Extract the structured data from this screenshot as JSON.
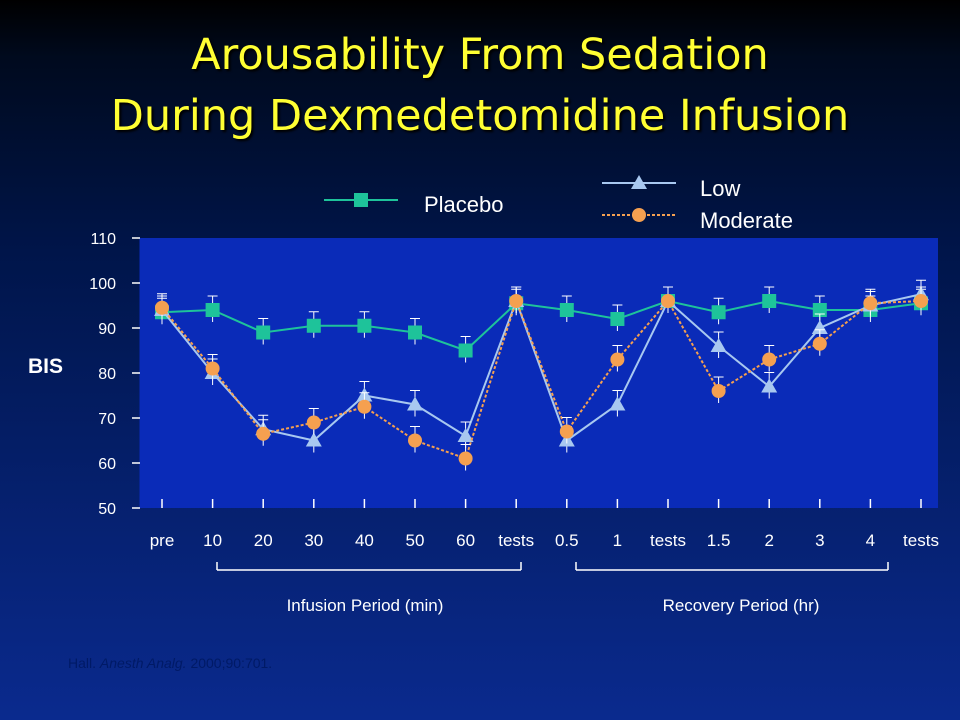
{
  "slide": {
    "title_line1": "Arousability From Sedation",
    "title_line2": "During Dexmedetomidine Infusion",
    "citation_author": "Hall.",
    "citation_journal": "Anesth Analg.",
    "citation_ref": "2000;90:701."
  },
  "chart_data": {
    "type": "line",
    "ylabel": "BIS",
    "ylim": [
      50,
      110
    ],
    "yticks": [
      50,
      60,
      70,
      80,
      90,
      100,
      110
    ],
    "categories": [
      "pre",
      "10",
      "20",
      "30",
      "40",
      "50",
      "60",
      "tests",
      "0.5",
      "1",
      "tests",
      "1.5",
      "2",
      "3",
      "4",
      "tests"
    ],
    "period_labels": [
      "Infusion Period (min)",
      "Recovery Period (hr)"
    ],
    "grid": false,
    "legend_position": "top",
    "series": [
      {
        "name": "Placebo",
        "color": "#1ec39a",
        "marker": "square",
        "values": [
          93.5,
          94,
          89,
          90.5,
          90.5,
          89,
          85,
          95.5,
          94,
          92,
          96,
          93.5,
          96,
          94,
          94,
          95.5
        ]
      },
      {
        "name": "Low",
        "color": "#a8c8f0",
        "marker": "triangle",
        "values": [
          94,
          80,
          67.5,
          65,
          75,
          73,
          66,
          96,
          65,
          73,
          96,
          86,
          77,
          90,
          95,
          97.5
        ]
      },
      {
        "name": "Moderate",
        "color": "#f5a050",
        "marker": "circle",
        "values": [
          94.5,
          81,
          66.5,
          69,
          72.5,
          65,
          61,
          96,
          67,
          83,
          96,
          76,
          83,
          86.5,
          95.5,
          96
        ]
      }
    ]
  }
}
